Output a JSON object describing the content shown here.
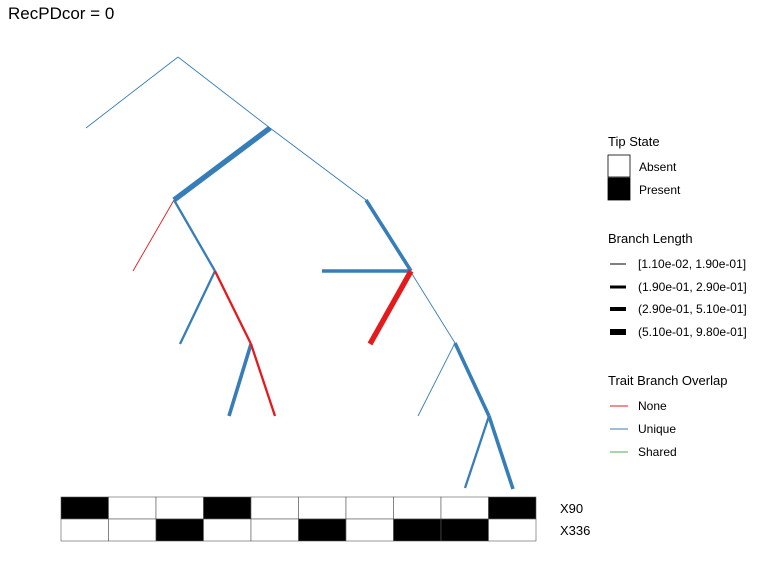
{
  "title": "RecPDcor = 0",
  "colors": {
    "none": "#e41a1c",
    "unique": "#377eb8",
    "shared": "#4daf4a",
    "absent": "#ffffff",
    "present": "#000000"
  },
  "tree": {
    "nodes": {
      "root": [
        "n1",
        "n2"
      ],
      "n1": [
        "n3",
        "n4"
      ],
      "n3": [
        "t1",
        "n5"
      ],
      "n5": [
        "t2",
        "n6"
      ],
      "n6": [
        "t3",
        "t4"
      ],
      "n4": [
        "n7",
        "n8"
      ],
      "n7": [
        "t5",
        "t6"
      ],
      "n8": [
        "t7",
        "n9"
      ],
      "n9": [
        "t8",
        "t9"
      ]
    },
    "branches": [
      {
        "from": "root",
        "to": "n1",
        "overlap": "unique",
        "length_class": 1
      },
      {
        "from": "root",
        "to": "n2",
        "overlap": "unique",
        "length_class": 1
      },
      {
        "from": "n1",
        "to": "n3",
        "overlap": "unique",
        "length_class": 4
      },
      {
        "from": "n1",
        "to": "n4",
        "overlap": "unique",
        "length_class": 1
      },
      {
        "from": "n3",
        "to": "t1",
        "overlap": "none",
        "length_class": 1
      },
      {
        "from": "n3",
        "to": "n5",
        "overlap": "unique",
        "length_class": 2
      },
      {
        "from": "n5",
        "to": "t2",
        "overlap": "unique",
        "length_class": 2
      },
      {
        "from": "n5",
        "to": "n6",
        "overlap": "none",
        "length_class": 2
      },
      {
        "from": "n6",
        "to": "t3",
        "overlap": "unique",
        "length_class": 3
      },
      {
        "from": "n6",
        "to": "t4",
        "overlap": "none",
        "length_class": 2
      },
      {
        "from": "n4",
        "to": "n7",
        "overlap": "unique",
        "length_class": 3
      },
      {
        "from": "n4",
        "to": "n8",
        "overlap": "unique",
        "length_class": 1
      },
      {
        "from": "n7",
        "to": "t5",
        "overlap": "unique",
        "length_class": 3
      },
      {
        "from": "n7",
        "to": "t6",
        "overlap": "none",
        "length_class": 4
      },
      {
        "from": "n8",
        "to": "t7",
        "overlap": "unique",
        "length_class": 1
      },
      {
        "from": "n8",
        "to": "n9",
        "overlap": "unique",
        "length_class": 3
      },
      {
        "from": "n9",
        "to": "t8",
        "overlap": "unique",
        "length_class": 2
      },
      {
        "from": "n9",
        "to": "t9",
        "overlap": "unique",
        "length_class": 3
      }
    ]
  },
  "matrix": {
    "rows": [
      {
        "label": "X90",
        "states": [
          1,
          0,
          0,
          1,
          0,
          0,
          0,
          0,
          0,
          1
        ]
      },
      {
        "label": "X336",
        "states": [
          0,
          0,
          1,
          0,
          0,
          1,
          0,
          1,
          1,
          0
        ]
      }
    ]
  },
  "legend": {
    "tip_state": {
      "title": "Tip State",
      "items": [
        {
          "label": "Absent",
          "state": 0
        },
        {
          "label": "Present",
          "state": 1
        }
      ]
    },
    "branch_length": {
      "title": "Branch Length",
      "items": [
        {
          "label": "[1.10e-02, 1.90e-01]",
          "length_class": 1
        },
        {
          "label": "(1.90e-01, 2.90e-01]",
          "length_class": 2
        },
        {
          "label": "(2.90e-01, 5.10e-01]",
          "length_class": 3
        },
        {
          "label": "(5.10e-01, 9.80e-01]",
          "length_class": 4
        }
      ]
    },
    "overlap": {
      "title": "Trait Branch Overlap",
      "items": [
        {
          "label": "None",
          "overlap": "none"
        },
        {
          "label": "Unique",
          "overlap": "unique"
        },
        {
          "label": "Shared",
          "overlap": "shared"
        }
      ]
    }
  }
}
